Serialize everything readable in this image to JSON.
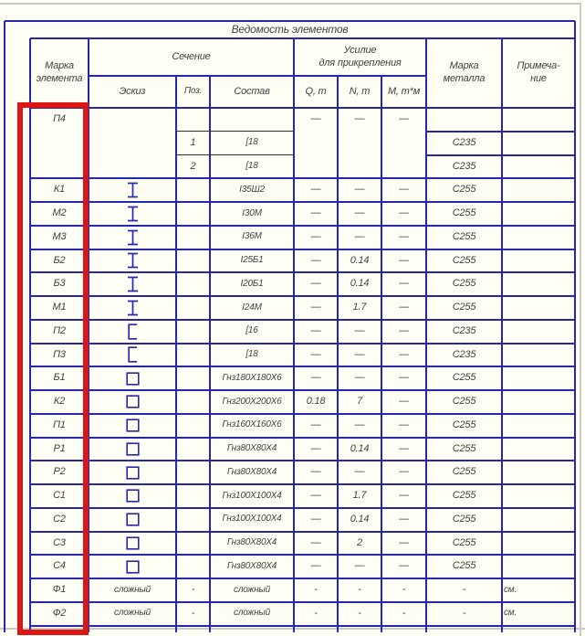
{
  "colors": {
    "bg": "#fffef5",
    "line": "#2626ae",
    "black": "#2e2e2e",
    "gray": "#c9c9c9",
    "text": "#414141",
    "red": "#dd1515"
  },
  "table": {
    "title": "Ведомость элементов",
    "header": {
      "marka_elementa": "Марка\nэлемента",
      "sechenie": "Сечение",
      "eskiz": "Эскиз",
      "poz": "Поз.",
      "sostav": "Состав",
      "usilie": "Усилие\nдля прикрепления",
      "q": "Q, т",
      "n": "N, т",
      "m": "М, т*м",
      "marka_metalla": "Марка\nметалла",
      "primechanie": "Примеча-\nние"
    },
    "block": {
      "mark": "П4",
      "q": "—",
      "n": "—",
      "m": "—",
      "subs": [
        {
          "poz": "1",
          "sostav": "[18",
          "steel": "С235"
        },
        {
          "poz": "2",
          "sostav": "[18",
          "steel": "С235"
        }
      ]
    },
    "rows": [
      {
        "mark": "К1",
        "sketch": "ibeam",
        "poz": "",
        "sostav": "I35Ш2",
        "q": "—",
        "n": "—",
        "m": "—",
        "steel": "С255",
        "note": ""
      },
      {
        "mark": "М2",
        "sketch": "ibeam",
        "poz": "",
        "sostav": "I30М",
        "q": "—",
        "n": "—",
        "m": "—",
        "steel": "С255",
        "note": ""
      },
      {
        "mark": "М3",
        "sketch": "ibeam",
        "poz": "",
        "sostav": "I36М",
        "q": "—",
        "n": "—",
        "m": "—",
        "steel": "С255",
        "note": ""
      },
      {
        "mark": "Б2",
        "sketch": "ibeam",
        "poz": "",
        "sostav": "I25Б1",
        "q": "—",
        "n": "0.14",
        "m": "—",
        "steel": "С255",
        "note": ""
      },
      {
        "mark": "Б3",
        "sketch": "ibeam",
        "poz": "",
        "sostav": "I20Б1",
        "q": "—",
        "n": "0.14",
        "m": "—",
        "steel": "С255",
        "note": ""
      },
      {
        "mark": "М1",
        "sketch": "ibeam",
        "poz": "",
        "sostav": "I24М",
        "q": "—",
        "n": "1.7",
        "m": "—",
        "steel": "С255",
        "note": ""
      },
      {
        "mark": "П2",
        "sketch": "channel",
        "poz": "",
        "sostav": "[16",
        "q": "—",
        "n": "—",
        "m": "—",
        "steel": "С235",
        "note": ""
      },
      {
        "mark": "П3",
        "sketch": "channel",
        "poz": "",
        "sostav": "[18",
        "q": "—",
        "n": "—",
        "m": "—",
        "steel": "С235",
        "note": ""
      },
      {
        "mark": "Б1",
        "sketch": "box",
        "poz": "",
        "sostav": "Гнз180Х180Х6",
        "q": "—",
        "n": "—",
        "m": "—",
        "steel": "С255",
        "note": ""
      },
      {
        "mark": "К2",
        "sketch": "box",
        "poz": "",
        "sostav": "Гнз200Х200Х6",
        "q": "0.18",
        "n": "7",
        "m": "—",
        "steel": "С255",
        "note": ""
      },
      {
        "mark": "П1",
        "sketch": "box",
        "poz": "",
        "sostav": "Гнз160Х160Х6",
        "q": "—",
        "n": "—",
        "m": "—",
        "steel": "С255",
        "note": ""
      },
      {
        "mark": "Р1",
        "sketch": "box",
        "poz": "",
        "sostav": "Гнз80Х80Х4",
        "q": "—",
        "n": "0.14",
        "m": "—",
        "steel": "С255",
        "note": ""
      },
      {
        "mark": "Р2",
        "sketch": "box",
        "poz": "",
        "sostav": "Гнз80Х80Х4",
        "q": "—",
        "n": "—",
        "m": "—",
        "steel": "С255",
        "note": ""
      },
      {
        "mark": "С1",
        "sketch": "box",
        "poz": "",
        "sostav": "Гнз100Х100Х4",
        "q": "—",
        "n": "1.7",
        "m": "—",
        "steel": "С255",
        "note": ""
      },
      {
        "mark": "С2",
        "sketch": "box",
        "poz": "",
        "sostav": "Гнз100Х100Х4",
        "q": "—",
        "n": "0.14",
        "m": "—",
        "steel": "С255",
        "note": ""
      },
      {
        "mark": "С3",
        "sketch": "box",
        "poz": "",
        "sostav": "Гнз80Х80Х4",
        "q": "—",
        "n": "2",
        "m": "—",
        "steel": "С255",
        "note": ""
      },
      {
        "mark": "С4",
        "sketch": "box",
        "poz": "",
        "sostav": "Гнз80Х80Х4",
        "q": "—",
        "n": "—",
        "m": "—",
        "steel": "С255",
        "note": ""
      },
      {
        "mark": "Ф1",
        "sketch": "complex",
        "sketch_label": "сложный",
        "poz": "-",
        "sostav": "сложный",
        "q": "-",
        "n": "-",
        "m": "-",
        "steel": "-",
        "note": "см."
      },
      {
        "mark": "Ф2",
        "sketch": "complex",
        "sketch_label": "сложный",
        "poz": "-",
        "sostav": "сложный",
        "q": "-",
        "n": "-",
        "m": "-",
        "steel": "-",
        "note": "см."
      }
    ]
  }
}
